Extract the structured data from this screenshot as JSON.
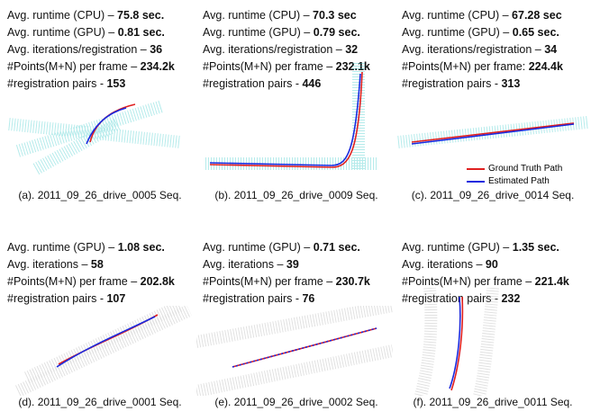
{
  "panels": [
    {
      "stats": [
        {
          "label": "Avg. runtime (CPU) –",
          "value": "75.8 sec."
        },
        {
          "label": "Avg. runtime (GPU) –",
          "value": "0.81 sec."
        },
        {
          "label": "Avg. iterations/registration –",
          "value": "36"
        },
        {
          "label": "#Points(M+N) per frame –",
          "value": "234.2k"
        },
        {
          "label": "#registration pairs -",
          "value": "153"
        }
      ],
      "caption": "(a). 2011_09_26_drive_0005 Seq."
    },
    {
      "stats": [
        {
          "label": "Avg. runtime (CPU) –",
          "value": "70.3 sec"
        },
        {
          "label": "Avg. runtime (GPU) –",
          "value": "0.79 sec."
        },
        {
          "label": "Avg. iterations/registration –",
          "value": "32"
        },
        {
          "label": "#Points(M+N) per frame –",
          "value": "232.1k"
        },
        {
          "label": "#registration pairs -",
          "value": "446"
        }
      ],
      "caption": "(b). 2011_09_26_drive_0009 Seq."
    },
    {
      "stats": [
        {
          "label": "Avg. runtime (CPU) –",
          "value": "67.28 sec"
        },
        {
          "label": "Avg. runtime (GPU) –",
          "value": "0.65 sec."
        },
        {
          "label": "Avg. iterations/registration –",
          "value": "34"
        },
        {
          "label": "#Points(M+N) per frame:",
          "value": "224.4k"
        },
        {
          "label": "#registration pairs -",
          "value": "313"
        }
      ],
      "caption": "(c). 2011_09_26_drive_0014 Seq.",
      "legend": [
        "Ground Truth Path",
        "Estimated Path"
      ]
    },
    {
      "stats": [
        {
          "label": "Avg. runtime (GPU) –",
          "value": "1.08 sec."
        },
        {
          "label": "Avg. iterations –",
          "value": "58"
        },
        {
          "label": "#Points(M+N) per frame –",
          "value": "202.8k"
        },
        {
          "label": "#registration pairs -",
          "value": "107"
        }
      ],
      "caption": "(d). 2011_09_26_drive_0001 Seq."
    },
    {
      "stats": [
        {
          "label": "Avg. runtime (GPU) –",
          "value": "0.71 sec."
        },
        {
          "label": "Avg. iterations –",
          "value": "39"
        },
        {
          "label": "#Points(M+N) per frame –",
          "value": "230.7k"
        },
        {
          "label": "#registration pairs -",
          "value": "76"
        }
      ],
      "caption": "(e). 2011_09_26_drive_0002 Seq."
    },
    {
      "stats": [
        {
          "label": "Avg. runtime (GPU) –",
          "value": "1.35 sec."
        },
        {
          "label": "Avg. iterations –",
          "value": "90"
        },
        {
          "label": "#Points(M+N) per frame –",
          "value": "221.4k"
        },
        {
          "label": "#registration pairs -",
          "value": "232"
        }
      ],
      "caption": "(f). 2011_09_26_drive_0011 Seq."
    }
  ]
}
